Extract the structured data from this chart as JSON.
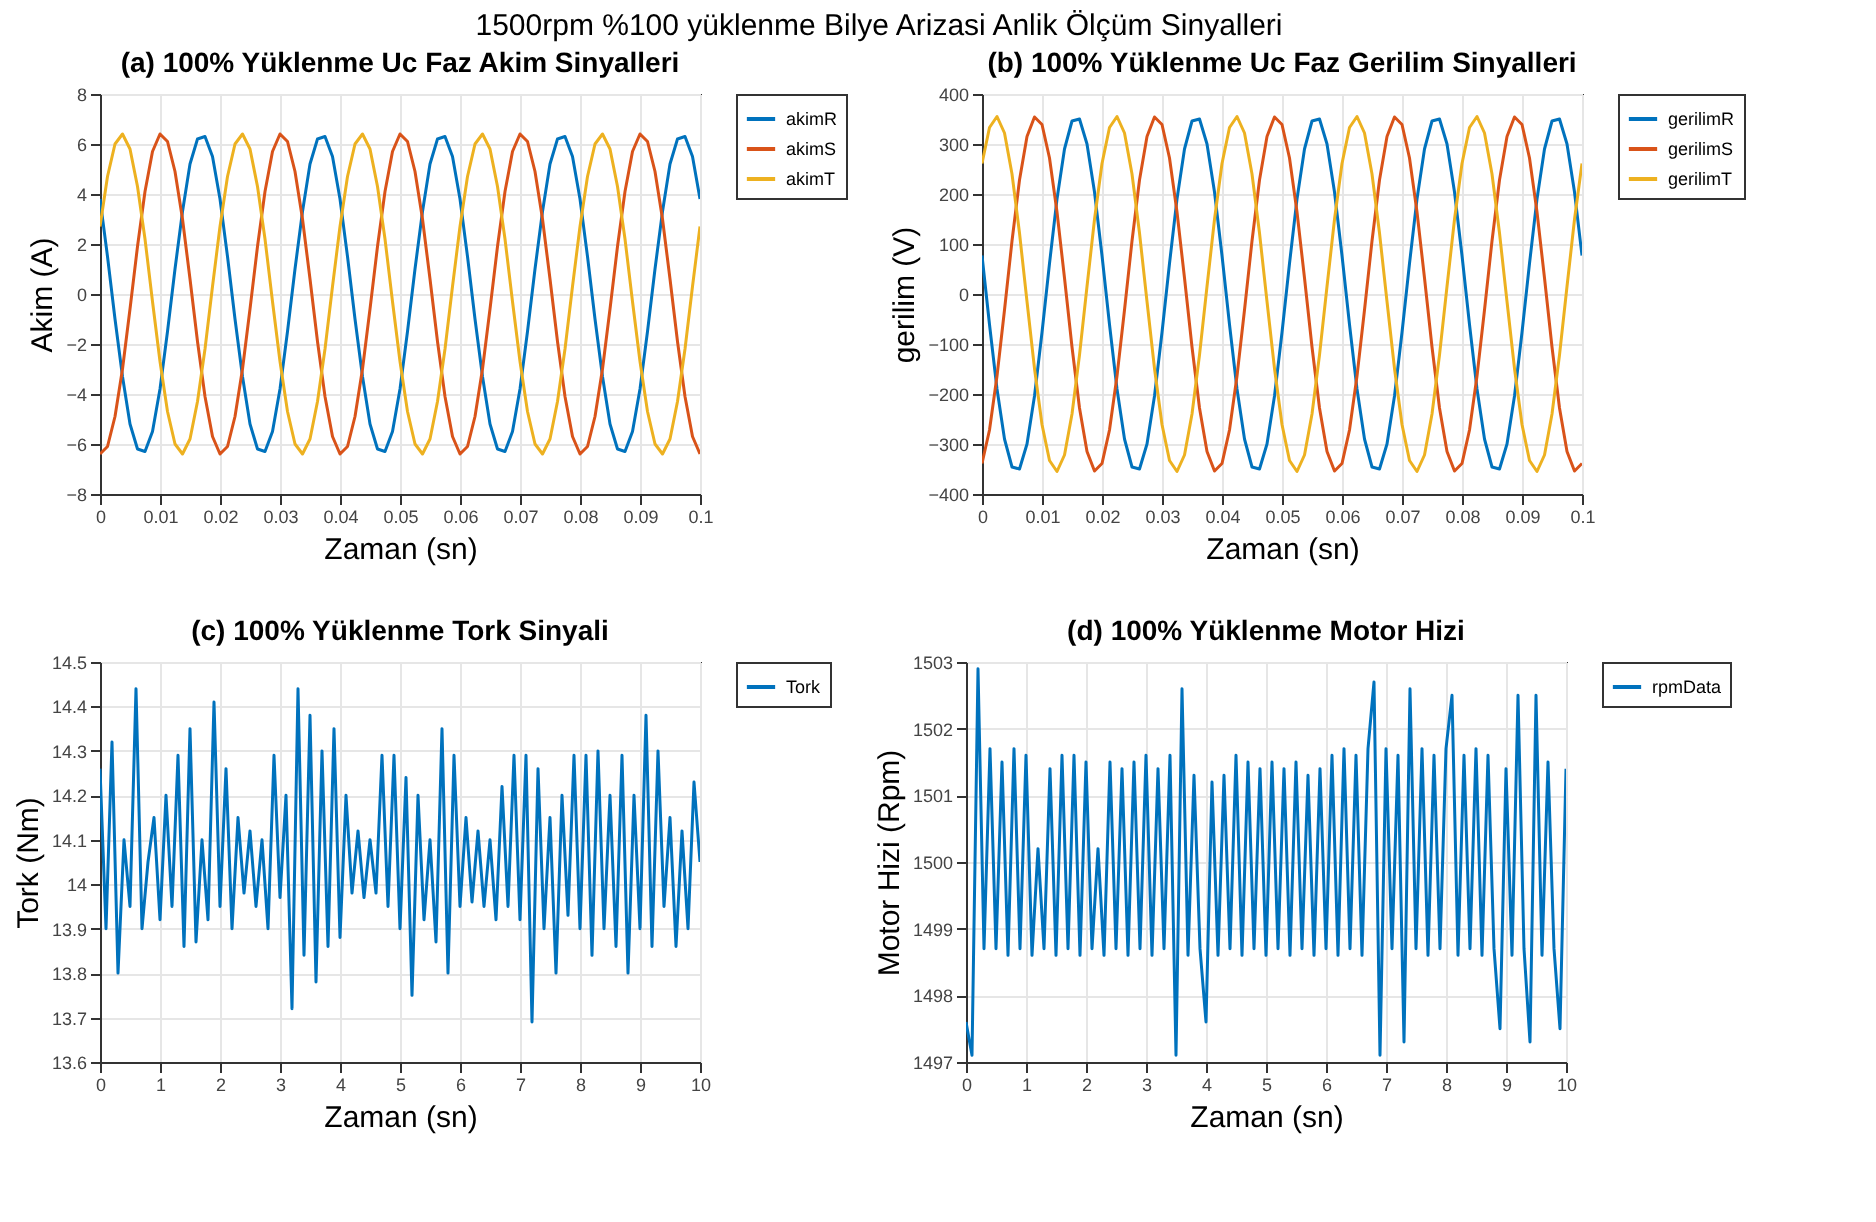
{
  "chart_data": [
    {
      "type": "line",
      "title": "(a) 100% Yüklenme Uc Faz Akim Sinyalleri",
      "xlabel": "Zaman (sn)",
      "ylabel": "Akim (A)",
      "annotations": [
        "1500rpm %100 yüklenme Bilye Arizasi Anlik Ölçüm Sinyalleri"
      ],
      "xlim": [
        0,
        0.1
      ],
      "ylim": [
        -8,
        8
      ],
      "xticks": [
        0,
        0.01,
        0.02,
        0.03,
        0.04,
        0.05,
        0.06,
        0.07,
        0.08,
        0.09,
        0.1
      ],
      "yticks": [
        -8,
        -6,
        -4,
        -2,
        0,
        2,
        4,
        6,
        8
      ],
      "grid": true,
      "legend": "right",
      "marker": "none",
      "line_style": "solid",
      "x": [
        0,
        0.00125,
        0.0025,
        0.00375,
        0.005,
        0.00625,
        0.0075,
        0.00875,
        0.01,
        0.01125,
        0.0125,
        0.01375,
        0.015,
        0.01625,
        0.0175,
        0.01875,
        0.02,
        0.02125,
        0.0225,
        0.02375,
        0.025,
        0.02625,
        0.0275,
        0.02875,
        0.03,
        0.03125,
        0.0325,
        0.03375,
        0.035,
        0.03625,
        0.0375,
        0.03875,
        0.04,
        0.04125,
        0.0425,
        0.04375,
        0.045,
        0.04625,
        0.0475,
        0.04875,
        0.05,
        0.05125,
        0.0525,
        0.05375,
        0.055,
        0.05625,
        0.0575,
        0.05875,
        0.06,
        0.06125,
        0.0625,
        0.06375,
        0.065,
        0.06625,
        0.0675,
        0.06875,
        0.07,
        0.07125,
        0.0725,
        0.07375,
        0.075,
        0.07625,
        0.0775,
        0.07875,
        0.08,
        0.08125,
        0.0825,
        0.08375,
        0.085,
        0.08625,
        0.0875,
        0.08875,
        0.09,
        0.09125,
        0.0925,
        0.09375,
        0.095,
        0.09625,
        0.0975,
        0.09875,
        0.1
      ],
      "series": [
        {
          "name": "akimR",
          "color": "#0072bd",
          "values": [
            3.8,
            1.5,
            -1.0,
            -3.3,
            -5.2,
            -6.2,
            -6.3,
            -5.5,
            -3.8,
            -1.5,
            1.0,
            3.3,
            5.2,
            6.2,
            6.3,
            5.5,
            3.8,
            1.5,
            -1.0,
            -3.3,
            -5.2,
            -6.2,
            -6.3,
            -5.5,
            -3.8,
            -1.5,
            1.0,
            3.3,
            5.2,
            6.2,
            6.3,
            5.5,
            3.8,
            1.5,
            -1.0,
            -3.3,
            -5.2,
            -6.2,
            -6.3,
            -5.5,
            -3.8,
            -1.5,
            1.0,
            3.3,
            5.2,
            6.2,
            6.3,
            5.5,
            3.8,
            1.5,
            -1.0,
            -3.3,
            -5.2,
            -6.2,
            -6.3,
            -5.5,
            -3.8,
            -1.5,
            1.0,
            3.3,
            5.2,
            6.2,
            6.3,
            5.5,
            3.8,
            1.5,
            -1.0,
            -3.3,
            -5.2,
            -6.2,
            -6.3,
            -5.5,
            -3.8,
            -1.5,
            1.0,
            3.3,
            5.2,
            6.2,
            6.3,
            5.5,
            3.8
          ]
        },
        {
          "name": "akimS",
          "color": "#d95319",
          "values": [
            -6.4,
            -6.1,
            -4.9,
            -3.0,
            -0.6,
            1.9,
            4.1,
            5.7,
            6.4,
            6.1,
            4.9,
            3.0,
            0.6,
            -1.9,
            -4.1,
            -5.7,
            -6.4,
            -6.1,
            -4.9,
            -3.0,
            -0.6,
            1.9,
            4.1,
            5.7,
            6.4,
            6.1,
            4.9,
            3.0,
            0.6,
            -1.9,
            -4.1,
            -5.7,
            -6.4,
            -6.1,
            -4.9,
            -3.0,
            -0.6,
            1.9,
            4.1,
            5.7,
            6.4,
            6.1,
            4.9,
            3.0,
            0.6,
            -1.9,
            -4.1,
            -5.7,
            -6.4,
            -6.1,
            -4.9,
            -3.0,
            -0.6,
            1.9,
            4.1,
            5.7,
            6.4,
            6.1,
            4.9,
            3.0,
            0.6,
            -1.9,
            -4.1,
            -5.7,
            -6.4,
            -6.1,
            -4.9,
            -3.0,
            -0.6,
            1.9,
            4.1,
            5.7,
            6.4,
            6.1,
            4.9,
            3.0,
            0.6,
            -1.9,
            -4.1,
            -5.7,
            -6.4
          ]
        },
        {
          "name": "akimT",
          "color": "#edb120",
          "values": [
            2.7,
            4.7,
            6.0,
            6.4,
            5.8,
            4.3,
            2.2,
            -0.3,
            -2.7,
            -4.7,
            -6.0,
            -6.4,
            -5.8,
            -4.3,
            -2.2,
            0.3,
            2.7,
            4.7,
            6.0,
            6.4,
            5.8,
            4.3,
            2.2,
            -0.3,
            -2.7,
            -4.7,
            -6.0,
            -6.4,
            -5.8,
            -4.3,
            -2.2,
            0.3,
            2.7,
            4.7,
            6.0,
            6.4,
            5.8,
            4.3,
            2.2,
            -0.3,
            -2.7,
            -4.7,
            -6.0,
            -6.4,
            -5.8,
            -4.3,
            -2.2,
            0.3,
            2.7,
            4.7,
            6.0,
            6.4,
            5.8,
            4.3,
            2.2,
            -0.3,
            -2.7,
            -4.7,
            -6.0,
            -6.4,
            -5.8,
            -4.3,
            -2.2,
            0.3,
            2.7,
            4.7,
            6.0,
            6.4,
            5.8,
            4.3,
            2.2,
            -0.3,
            -2.7,
            -4.7,
            -6.0,
            -6.4,
            -5.8,
            -4.3,
            -2.2,
            0.3,
            2.7
          ]
        }
      ]
    },
    {
      "type": "line",
      "title": "(b) 100% Yüklenme Uc Faz Gerilim Sinyalleri",
      "xlabel": "Zaman (sn)",
      "ylabel": "gerilim (V)",
      "xlim": [
        0,
        0.1
      ],
      "ylim": [
        -400,
        400
      ],
      "xticks": [
        0,
        0.01,
        0.02,
        0.03,
        0.04,
        0.05,
        0.06,
        0.07,
        0.08,
        0.09,
        0.1
      ],
      "yticks": [
        -400,
        -300,
        -200,
        -100,
        0,
        100,
        200,
        300,
        400
      ],
      "grid": true,
      "legend": "right",
      "marker": "none",
      "line_style": "solid",
      "x": [
        0,
        0.00125,
        0.0025,
        0.00375,
        0.005,
        0.00625,
        0.0075,
        0.00875,
        0.01,
        0.01125,
        0.0125,
        0.01375,
        0.015,
        0.01625,
        0.0175,
        0.01875,
        0.02,
        0.02125,
        0.0225,
        0.02375,
        0.025,
        0.02625,
        0.0275,
        0.02875,
        0.03,
        0.03125,
        0.0325,
        0.03375,
        0.035,
        0.03625,
        0.0375,
        0.03875,
        0.04,
        0.04125,
        0.0425,
        0.04375,
        0.045,
        0.04625,
        0.0475,
        0.04875,
        0.05,
        0.05125,
        0.0525,
        0.05375,
        0.055,
        0.05625,
        0.0575,
        0.05875,
        0.06,
        0.06125,
        0.0625,
        0.06375,
        0.065,
        0.06625,
        0.0675,
        0.06875,
        0.07,
        0.07125,
        0.0725,
        0.07375,
        0.075,
        0.07625,
        0.0775,
        0.07875,
        0.08,
        0.08125,
        0.0825,
        0.08375,
        0.085,
        0.08625,
        0.0875,
        0.08875,
        0.09,
        0.09125,
        0.0925,
        0.09375,
        0.095,
        0.09625,
        0.0975,
        0.09875,
        0.1
      ],
      "series": [
        {
          "name": "gerilimR",
          "color": "#0072bd",
          "values": [
            77,
            -61,
            -190,
            -290,
            -346,
            -350,
            -300,
            -204,
            -77,
            61,
            190,
            290,
            346,
            350,
            300,
            204,
            77,
            -61,
            -190,
            -290,
            -346,
            -350,
            -300,
            -204,
            -77,
            61,
            190,
            290,
            346,
            350,
            300,
            204,
            77,
            -61,
            -190,
            -290,
            -346,
            -350,
            -300,
            -204,
            -77,
            61,
            190,
            290,
            346,
            350,
            300,
            204,
            77,
            -61,
            -190,
            -290,
            -346,
            -350,
            -300,
            -204,
            -77,
            61,
            190,
            290,
            346,
            350,
            300,
            204,
            77,
            -61,
            -190,
            -290,
            -346,
            -350,
            -300,
            -204,
            -77,
            61,
            190,
            290,
            346,
            350,
            300,
            204,
            77
          ]
        },
        {
          "name": "gerilimS",
          "color": "#d95319",
          "values": [
            -339,
            -272,
            -164,
            -32,
            106,
            228,
            315,
            354,
            339,
            272,
            164,
            32,
            -106,
            -228,
            -315,
            -354,
            -339,
            -272,
            -164,
            -32,
            106,
            228,
            315,
            354,
            339,
            272,
            164,
            32,
            -106,
            -228,
            -315,
            -354,
            -339,
            -272,
            -164,
            -32,
            106,
            228,
            315,
            354,
            339,
            272,
            164,
            32,
            -106,
            -228,
            -315,
            -354,
            -339,
            -272,
            -164,
            -32,
            106,
            228,
            315,
            354,
            339,
            272,
            164,
            32,
            -106,
            -228,
            -315,
            -354,
            -339,
            -272,
            -164,
            -32,
            106,
            228,
            315,
            354,
            339,
            272,
            164,
            32,
            -106,
            -228,
            -315,
            -354,
            -339
          ]
        },
        {
          "name": "gerilimT",
          "color": "#edb120",
          "values": [
            261,
            333,
            355,
            322,
            240,
            122,
            -15,
            -149,
            -261,
            -333,
            -355,
            -322,
            -240,
            -122,
            15,
            149,
            261,
            333,
            355,
            322,
            240,
            122,
            -15,
            -149,
            -261,
            -333,
            -355,
            -322,
            -240,
            -122,
            15,
            149,
            261,
            333,
            355,
            322,
            240,
            122,
            -15,
            -149,
            -261,
            -333,
            -355,
            -322,
            -240,
            -122,
            15,
            149,
            261,
            333,
            355,
            322,
            240,
            122,
            -15,
            -149,
            -261,
            -333,
            -355,
            -322,
            -240,
            -122,
            15,
            149,
            261,
            333,
            355,
            322,
            240,
            122,
            -15,
            -149,
            -261,
            -333,
            -355,
            -322,
            -240,
            -122,
            15,
            149,
            261
          ]
        }
      ]
    },
    {
      "type": "line",
      "title": "(c) 100% Yüklenme Tork Sinyali",
      "xlabel": "Zaman (sn)",
      "ylabel": "Tork (Nm)",
      "xlim": [
        0,
        10
      ],
      "ylim": [
        13.6,
        14.5
      ],
      "xticks": [
        0,
        1,
        2,
        3,
        4,
        5,
        6,
        7,
        8,
        9,
        10
      ],
      "yticks": [
        13.6,
        13.7,
        13.8,
        13.9,
        14,
        14.1,
        14.2,
        14.3,
        14.4,
        14.5
      ],
      "grid": true,
      "legend": "right",
      "marker": "none",
      "line_style": "solid",
      "x": [
        0,
        0.1,
        0.2,
        0.3,
        0.4,
        0.5,
        0.6,
        0.7,
        0.8,
        0.9,
        1,
        1.1,
        1.2,
        1.3,
        1.4,
        1.5,
        1.6,
        1.7,
        1.8,
        1.9,
        2,
        2.1,
        2.2,
        2.3,
        2.4,
        2.5,
        2.6,
        2.7,
        2.8,
        2.9,
        3,
        3.1,
        3.2,
        3.3,
        3.4,
        3.5,
        3.6,
        3.7,
        3.8,
        3.9,
        4,
        4.1,
        4.2,
        4.3,
        4.4,
        4.5,
        4.6,
        4.7,
        4.8,
        4.9,
        5,
        5.1,
        5.2,
        5.3,
        5.4,
        5.5,
        5.6,
        5.7,
        5.8,
        5.9,
        6,
        6.1,
        6.2,
        6.3,
        6.4,
        6.5,
        6.6,
        6.7,
        6.8,
        6.9,
        7,
        7.1,
        7.2,
        7.3,
        7.4,
        7.5,
        7.6,
        7.7,
        7.8,
        7.9,
        8,
        8.1,
        8.2,
        8.3,
        8.4,
        8.5,
        8.6,
        8.7,
        8.8,
        8.9,
        9,
        9.1,
        9.2,
        9.3,
        9.4,
        9.5,
        9.6,
        9.7,
        9.8,
        9.9,
        10
      ],
      "series": [
        {
          "name": "Tork",
          "color": "#0072bd",
          "values": [
            14.26,
            13.9,
            14.32,
            13.8,
            14.1,
            13.95,
            14.44,
            13.9,
            14.05,
            14.15,
            13.92,
            14.2,
            13.95,
            14.29,
            13.86,
            14.35,
            13.87,
            14.1,
            13.92,
            14.41,
            13.95,
            14.26,
            13.9,
            14.15,
            13.98,
            14.12,
            13.95,
            14.1,
            13.9,
            14.29,
            13.97,
            14.2,
            13.72,
            14.44,
            13.84,
            14.38,
            13.78,
            14.3,
            13.86,
            14.35,
            13.88,
            14.2,
            13.98,
            14.12,
            13.97,
            14.1,
            13.98,
            14.29,
            13.95,
            14.29,
            13.9,
            14.24,
            13.75,
            14.2,
            13.92,
            14.1,
            13.87,
            14.35,
            13.8,
            14.29,
            13.95,
            14.15,
            13.96,
            14.12,
            13.95,
            14.1,
            13.92,
            14.22,
            13.95,
            14.29,
            13.92,
            14.29,
            13.69,
            14.26,
            13.9,
            14.15,
            13.8,
            14.2,
            13.93,
            14.29,
            13.9,
            14.29,
            13.84,
            14.3,
            13.9,
            14.2,
            13.86,
            14.29,
            13.8,
            14.2,
            13.9,
            14.38,
            13.86,
            14.3,
            13.95,
            14.15,
            13.86,
            14.12,
            13.9,
            14.23,
            14.05
          ]
        }
      ]
    },
    {
      "type": "line",
      "title": "(d) 100% Yüklenme Motor Hizi",
      "xlabel": "Zaman (sn)",
      "ylabel": "Motor Hizi (Rpm)",
      "xlim": [
        0,
        10
      ],
      "ylim": [
        1497,
        1503
      ],
      "xticks": [
        0,
        1,
        2,
        3,
        4,
        5,
        6,
        7,
        8,
        9,
        10
      ],
      "yticks": [
        1497,
        1498,
        1499,
        1500,
        1501,
        1502,
        1503
      ],
      "grid": true,
      "legend": "right",
      "marker": "none",
      "line_style": "solid",
      "x": [
        0,
        0.1,
        0.2,
        0.3,
        0.4,
        0.5,
        0.6,
        0.7,
        0.8,
        0.9,
        1,
        1.1,
        1.2,
        1.3,
        1.4,
        1.5,
        1.6,
        1.7,
        1.8,
        1.9,
        2,
        2.1,
        2.2,
        2.3,
        2.4,
        2.5,
        2.6,
        2.7,
        2.8,
        2.9,
        3,
        3.1,
        3.2,
        3.3,
        3.4,
        3.5,
        3.6,
        3.7,
        3.8,
        3.9,
        4,
        4.1,
        4.2,
        4.3,
        4.4,
        4.5,
        4.6,
        4.7,
        4.8,
        4.9,
        5,
        5.1,
        5.2,
        5.3,
        5.4,
        5.5,
        5.6,
        5.7,
        5.8,
        5.9,
        6,
        6.1,
        6.2,
        6.3,
        6.4,
        6.5,
        6.6,
        6.7,
        6.8,
        6.9,
        7,
        7.1,
        7.2,
        7.3,
        7.4,
        7.5,
        7.6,
        7.7,
        7.8,
        7.9,
        8,
        8.1,
        8.2,
        8.3,
        8.4,
        8.5,
        8.6,
        8.7,
        8.8,
        8.9,
        9,
        9.1,
        9.2,
        9.3,
        9.4,
        9.5,
        9.6,
        9.7,
        9.8,
        9.9,
        10
      ],
      "series": [
        {
          "name": "rpmData",
          "color": "#0072bd",
          "values": [
            1497.6,
            1497.1,
            1502.9,
            1498.7,
            1501.7,
            1498.7,
            1501.5,
            1498.6,
            1501.7,
            1498.7,
            1501.6,
            1498.6,
            1500.2,
            1498.7,
            1501.4,
            1498.6,
            1501.6,
            1498.7,
            1501.6,
            1498.6,
            1501.5,
            1498.7,
            1500.2,
            1498.6,
            1501.5,
            1498.7,
            1501.4,
            1498.6,
            1501.5,
            1498.7,
            1501.6,
            1498.6,
            1501.4,
            1498.7,
            1501.6,
            1497.1,
            1502.6,
            1498.6,
            1501.3,
            1498.7,
            1497.6,
            1501.2,
            1498.6,
            1501.3,
            1498.7,
            1501.6,
            1498.6,
            1501.5,
            1498.7,
            1501.4,
            1498.6,
            1501.5,
            1498.7,
            1501.4,
            1498.6,
            1501.5,
            1498.7,
            1501.3,
            1498.6,
            1501.4,
            1498.7,
            1501.6,
            1498.6,
            1501.7,
            1498.7,
            1501.6,
            1498.6,
            1501.7,
            1502.7,
            1497.1,
            1501.7,
            1498.7,
            1501.6,
            1497.3,
            1502.6,
            1498.7,
            1501.7,
            1498.6,
            1501.6,
            1498.7,
            1501.7,
            1502.5,
            1498.6,
            1501.6,
            1498.7,
            1501.7,
            1498.6,
            1501.6,
            1498.7,
            1497.5,
            1501.4,
            1498.6,
            1502.5,
            1498.7,
            1497.3,
            1502.5,
            1498.6,
            1501.5,
            1498.7,
            1497.5,
            1501.4
          ]
        }
      ]
    }
  ]
}
